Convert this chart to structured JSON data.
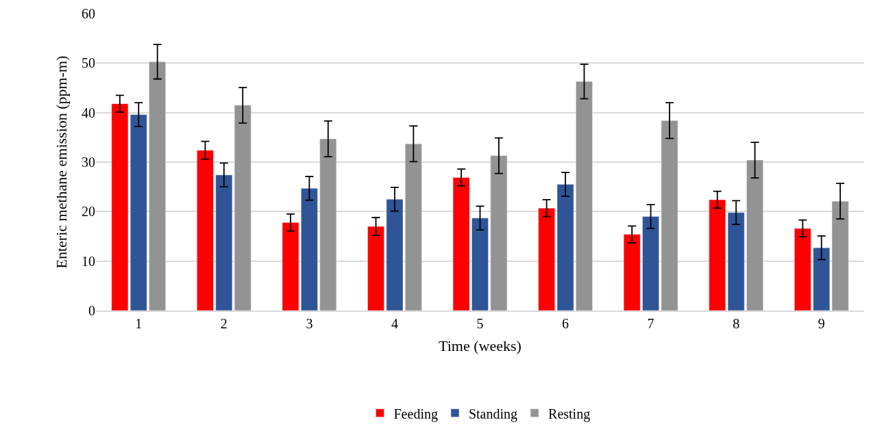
{
  "chart_data": {
    "type": "bar",
    "xlabel": "Time (weeks)",
    "ylabel": "Enteric methane emission (ppm-m)",
    "categories": [
      "1",
      "2",
      "3",
      "4",
      "5",
      "6",
      "7",
      "8",
      "9"
    ],
    "series": [
      {
        "name": "Feeding",
        "color": "#ff0000",
        "values": [
          41.8,
          32.4,
          17.8,
          17.0,
          26.9,
          20.7,
          15.4,
          22.4,
          16.6
        ],
        "errors": [
          1.7,
          1.8,
          1.7,
          1.8,
          1.7,
          1.7,
          1.7,
          1.7,
          1.7
        ]
      },
      {
        "name": "Standing",
        "color": "#2f5597",
        "values": [
          39.6,
          27.4,
          24.7,
          22.5,
          18.7,
          25.5,
          19.0,
          19.8,
          12.7
        ],
        "errors": [
          2.4,
          2.4,
          2.4,
          2.4,
          2.4,
          2.4,
          2.4,
          2.4,
          2.4
        ]
      },
      {
        "name": "Resting",
        "color": "#939393",
        "values": [
          50.3,
          41.5,
          34.7,
          33.7,
          31.3,
          46.3,
          38.4,
          30.4,
          22.1
        ],
        "errors": [
          3.5,
          3.6,
          3.6,
          3.6,
          3.6,
          3.5,
          3.6,
          3.6,
          3.6
        ]
      }
    ],
    "ylim": [
      0,
      60
    ],
    "yticks": [
      0,
      10,
      20,
      30,
      40,
      50,
      60
    ],
    "grid": "y",
    "legend": "bottom"
  }
}
